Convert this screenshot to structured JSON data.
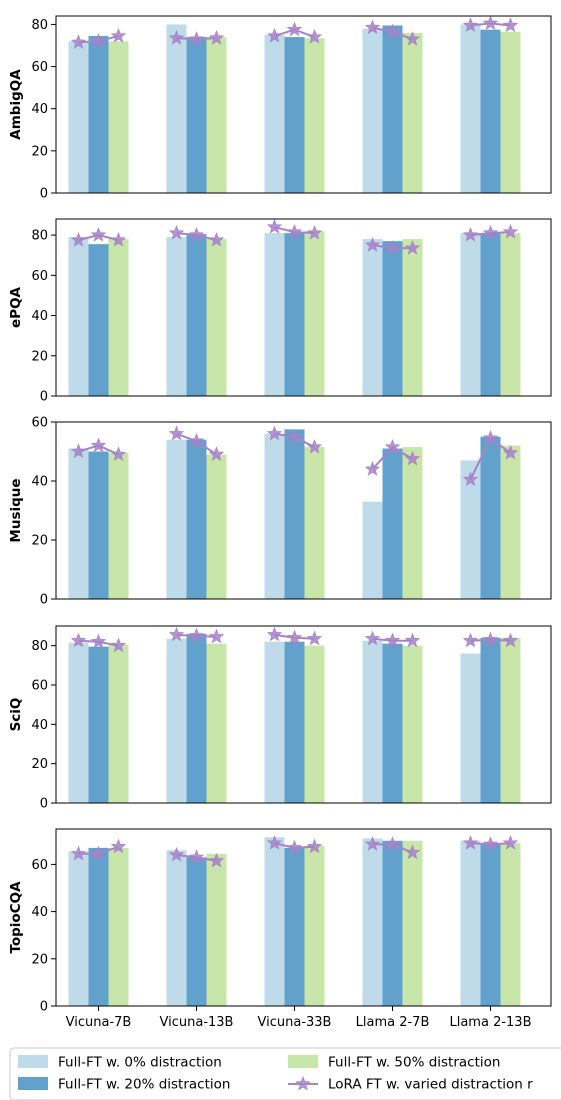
{
  "chart_data": {
    "type": "bar",
    "categories": [
      "Vicuna-7B",
      "Vicuna-13B",
      "Vicuna-33B",
      "Llama 2-7B",
      "Llama 2-13B"
    ],
    "bar_series": [
      {
        "name": "Full-FT  w. 0% distraction",
        "color": "#bfdbea"
      },
      {
        "name": "Full-FT  w. 20% distraction",
        "color": "#63a1cd"
      },
      {
        "name": "Full-FT  w. 50% distraction",
        "color": "#c8e6a9"
      }
    ],
    "line_series": {
      "name": "LoRA FT w. varied distraction r",
      "color": "#a783c9"
    },
    "grid": false,
    "legend_position": "bottom",
    "panels": [
      {
        "ylabel": "AmbigQA",
        "ylim": [
          0,
          84
        ],
        "yticks": [
          0,
          20,
          40,
          60,
          80
        ],
        "bars": [
          [
            72,
            80,
            75,
            78,
            80
          ],
          [
            74.5,
            74,
            74,
            79.5,
            77.5
          ],
          [
            72,
            74,
            73.5,
            76,
            76.5
          ]
        ],
        "lora": [
          [
            71.5,
            72,
            74.5
          ],
          [
            73.5,
            73,
            73.5
          ],
          [
            74.5,
            77.5,
            74
          ],
          [
            78.5,
            76.5,
            73
          ],
          [
            79.5,
            80.5,
            79.5
          ]
        ]
      },
      {
        "ylabel": "ePQA",
        "ylim": [
          0,
          88
        ],
        "yticks": [
          0,
          20,
          40,
          60,
          80
        ],
        "bars": [
          [
            79,
            79,
            81,
            78,
            81
          ],
          [
            75.5,
            80.5,
            81,
            77,
            81
          ],
          [
            78,
            78,
            82,
            78,
            81
          ]
        ],
        "lora": [
          [
            77.5,
            80,
            77.5
          ],
          [
            81,
            80,
            77.5
          ],
          [
            84,
            81.5,
            81
          ],
          [
            75,
            73.5,
            73.5
          ],
          [
            80,
            81,
            81.5
          ]
        ]
      },
      {
        "ylabel": "Musique",
        "ylim": [
          0,
          60
        ],
        "yticks": [
          0,
          20,
          40,
          60
        ],
        "bars": [
          [
            51,
            54,
            56,
            33,
            47
          ],
          [
            50,
            54,
            57.5,
            51,
            55
          ],
          [
            49.5,
            49,
            51.5,
            51.5,
            52
          ]
        ],
        "lora": [
          [
            50,
            52,
            49
          ],
          [
            56,
            53.5,
            49
          ],
          [
            56,
            55,
            51.5
          ],
          [
            44,
            51.5,
            47.5
          ],
          [
            40.5,
            54.5,
            49.5
          ]
        ]
      },
      {
        "ylabel": "SciQ",
        "ylim": [
          0,
          90
        ],
        "yticks": [
          0,
          20,
          40,
          60,
          80
        ],
        "bars": [
          [
            81.5,
            83.5,
            82,
            82.5,
            76
          ],
          [
            79.5,
            86,
            82,
            81,
            84
          ],
          [
            80.5,
            81,
            80,
            80,
            84
          ]
        ],
        "lora": [
          [
            82.5,
            82,
            80
          ],
          [
            85.5,
            85,
            84.5
          ],
          [
            85.5,
            84,
            83.5
          ],
          [
            83.5,
            82.5,
            82.5
          ],
          [
            82.5,
            83,
            82.5
          ]
        ]
      },
      {
        "ylabel": "TopioCQA",
        "ylim": [
          0,
          75
        ],
        "yticks": [
          0,
          20,
          40,
          60
        ],
        "bars": [
          [
            65.5,
            66,
            71.5,
            71,
            70
          ],
          [
            67,
            63,
            67,
            70,
            69
          ],
          [
            67,
            64.5,
            68,
            70,
            69
          ]
        ],
        "lora": [
          [
            64.5,
            64.5,
            67.5
          ],
          [
            64,
            63,
            61.5
          ],
          [
            69,
            67,
            67.5
          ],
          [
            68.5,
            68.5,
            65
          ],
          [
            69,
            68.5,
            69
          ]
        ]
      }
    ]
  }
}
